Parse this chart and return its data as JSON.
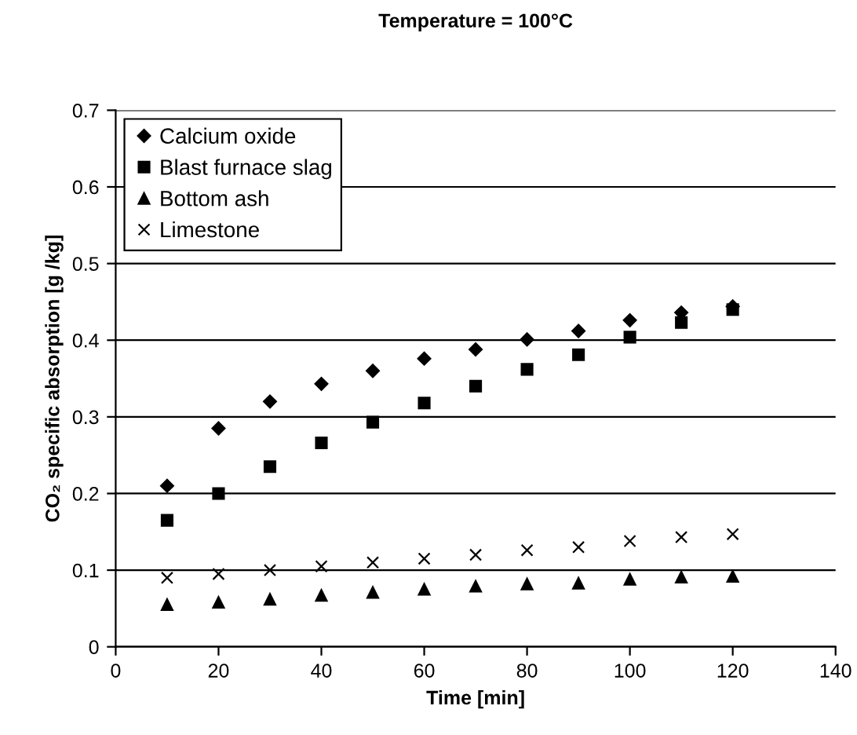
{
  "chart_data": {
    "type": "scatter",
    "title": "Temperature = 100°C",
    "xlabel": "Time [min]",
    "ylabel": "CO₂ specific absorption [g /kg]",
    "x": [
      10,
      20,
      30,
      40,
      50,
      60,
      70,
      80,
      90,
      100,
      110,
      120
    ],
    "series": [
      {
        "name": "Calcium oxide",
        "color": "#000000",
        "marker": "diamond",
        "values": [
          0.21,
          0.285,
          0.32,
          0.343,
          0.36,
          0.376,
          0.388,
          0.401,
          0.412,
          0.426,
          0.436,
          0.444
        ]
      },
      {
        "name": "Blast furnace slag",
        "color": "#000000",
        "marker": "square",
        "values": [
          0.165,
          0.2,
          0.235,
          0.266,
          0.293,
          0.318,
          0.34,
          0.362,
          0.381,
          0.404,
          0.423,
          0.44
        ]
      },
      {
        "name": "Bottom ash",
        "color": "#000000",
        "marker": "triangle",
        "values": [
          0.055,
          0.058,
          0.062,
          0.067,
          0.071,
          0.075,
          0.079,
          0.082,
          0.083,
          0.088,
          0.091,
          0.092
        ]
      },
      {
        "name": "Limestone",
        "color": "#000000",
        "marker": "cross",
        "values": [
          0.09,
          0.095,
          0.1,
          0.105,
          0.11,
          0.115,
          0.12,
          0.126,
          0.13,
          0.138,
          0.143,
          0.147
        ]
      }
    ],
    "xlim": [
      0,
      140
    ],
    "xticks": [
      0,
      20,
      40,
      60,
      80,
      100,
      120,
      140
    ],
    "ylim": [
      0,
      0.7
    ],
    "yticks": [
      0,
      0.1,
      0.2,
      0.3,
      0.4,
      0.5,
      0.6,
      0.7
    ],
    "grid": "y",
    "legend": "top left"
  }
}
